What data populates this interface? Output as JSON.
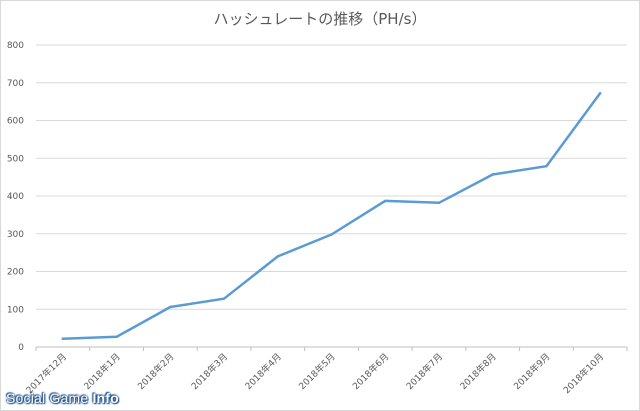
{
  "chart_data": {
    "type": "line",
    "title": "ハッシュレートの推移（PH/s）",
    "categories": [
      "2017年12月",
      "2018年1月",
      "2018年2月",
      "2018年3月",
      "2018年4月",
      "2018年5月",
      "2018年6月",
      "2018年7月",
      "2018年8月",
      "2018年9月",
      "2018年10月"
    ],
    "values": [
      22,
      27,
      106,
      128,
      240,
      298,
      387,
      382,
      457,
      479,
      672
    ],
    "ylim": [
      0,
      800
    ],
    "yticks": [
      0,
      100,
      200,
      300,
      400,
      500,
      600,
      700,
      800
    ],
    "grid": true,
    "line_color": "#5b9bd5"
  },
  "watermark": {
    "prefix": "Social Game ",
    "suffix": "Info"
  }
}
